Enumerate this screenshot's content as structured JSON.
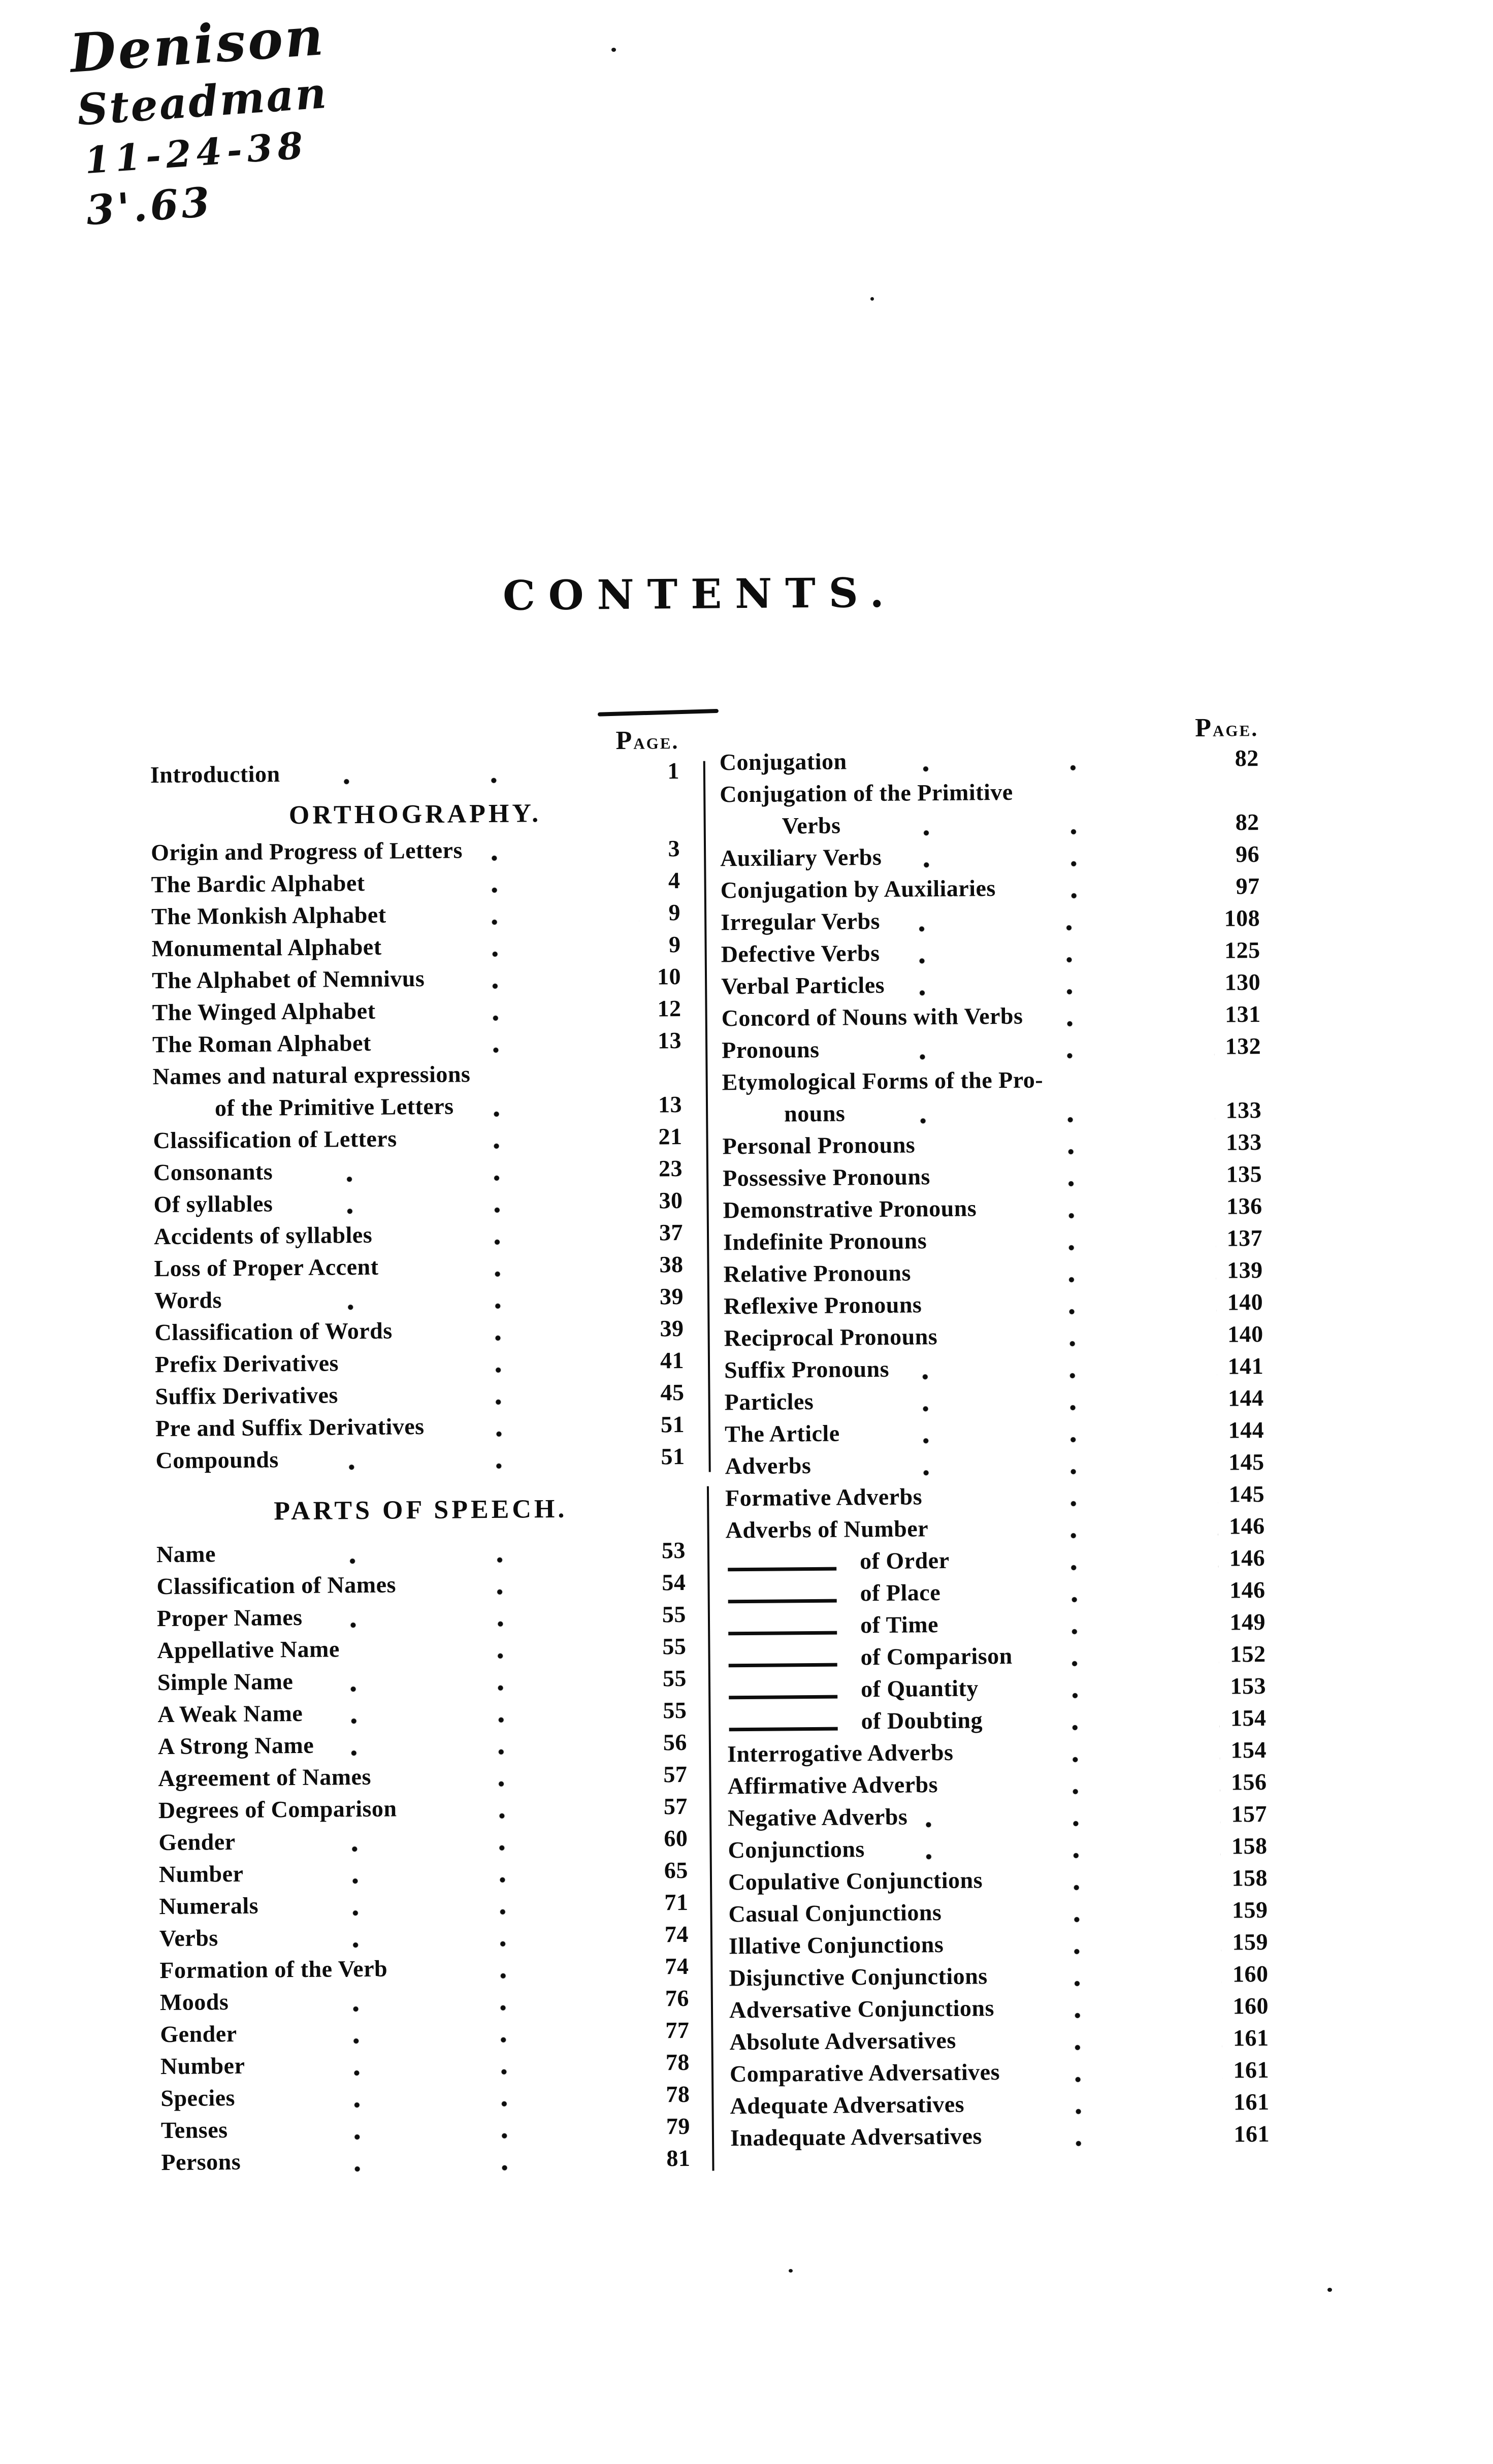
{
  "handwriting": {
    "line1": "Denison",
    "line2": "Steadman",
    "line3": "11-24-38",
    "line4": "3'.63"
  },
  "title": "CONTENTS.",
  "page_header": "Page.",
  "left_column": {
    "items": [
      {
        "type": "pagehead"
      },
      {
        "label": "Introduction",
        "page": "1"
      },
      {
        "section": "ORTHOGRAPHY."
      },
      {
        "label": "Origin and Progress of Letters",
        "page": "3"
      },
      {
        "label": "The Bardic Alphabet",
        "page": "4"
      },
      {
        "label": "The Monkish Alphabet",
        "page": "9"
      },
      {
        "label": "Monumental Alphabet",
        "page": "9"
      },
      {
        "label": "The Alphabet of Nemnivus",
        "page": "10"
      },
      {
        "label": "The Winged Alphabet",
        "page": "12"
      },
      {
        "label": "The Roman Alphabet",
        "page": "13"
      },
      {
        "label": "Names and natural expressions"
      },
      {
        "label": "of the Primitive Letters",
        "page": "13",
        "indent": true
      },
      {
        "label": "Classification of Letters",
        "page": "21"
      },
      {
        "label": "Consonants",
        "page": "23"
      },
      {
        "label": "Of syllables",
        "page": "30"
      },
      {
        "label": "Accidents of syllables",
        "page": "37"
      },
      {
        "label": "Loss of Proper Accent",
        "page": "38"
      },
      {
        "label": "Words",
        "page": "39"
      },
      {
        "label": "Classification of Words",
        "page": "39"
      },
      {
        "label": "Prefix Derivatives",
        "page": "41"
      },
      {
        "label": "Suffix Derivatives",
        "page": "45"
      },
      {
        "label": "Pre and Suffix Derivatives",
        "page": "51"
      },
      {
        "label": "Compounds",
        "page": "51"
      },
      {
        "section": "PARTS OF SPEECH.",
        "gap": "large"
      },
      {
        "label": "Name",
        "page": "53"
      },
      {
        "label": "Classification of Names",
        "page": "54"
      },
      {
        "label": "Proper Names",
        "page": "55"
      },
      {
        "label": "Appellative Name",
        "page": "55"
      },
      {
        "label": "Simple Name",
        "page": "55"
      },
      {
        "label": "A Weak Name",
        "page": "55"
      },
      {
        "label": "A Strong Name",
        "page": "56"
      },
      {
        "label": "Agreement of Names",
        "page": "57"
      },
      {
        "label": "Degrees of Comparison",
        "page": "57"
      },
      {
        "label": "Gender",
        "page": "60"
      },
      {
        "label": "Number",
        "page": "65"
      },
      {
        "label": "Numerals",
        "page": "71"
      },
      {
        "label": "Verbs",
        "page": "74"
      },
      {
        "label": "Formation of the Verb",
        "page": "74"
      },
      {
        "label": "Moods",
        "page": "76"
      },
      {
        "label": "Gender",
        "page": "77"
      },
      {
        "label": "Number",
        "page": "78"
      },
      {
        "label": "Species",
        "page": "78"
      },
      {
        "label": "Tenses",
        "page": "79"
      },
      {
        "label": "Persons",
        "page": "81"
      }
    ]
  },
  "right_column": {
    "items": [
      {
        "type": "pagehead"
      },
      {
        "label": "Conjugation",
        "page": "82"
      },
      {
        "label": "Conjugation of the Primitive"
      },
      {
        "label": "Verbs",
        "page": "82",
        "indent": true
      },
      {
        "label": "Auxiliary Verbs",
        "page": "96"
      },
      {
        "label": "Conjugation by Auxiliaries",
        "page": "97"
      },
      {
        "label": "Irregular Verbs",
        "page": "108"
      },
      {
        "label": "Defective Verbs",
        "page": "125"
      },
      {
        "label": "Verbal Particles",
        "page": "130"
      },
      {
        "label": "Concord of Nouns with Verbs",
        "page": "131"
      },
      {
        "label": "Pronouns",
        "page": "132"
      },
      {
        "label": "Etymological Forms of the Pro-"
      },
      {
        "label": "nouns",
        "page": "133",
        "indent": true
      },
      {
        "label": "Personal Pronouns",
        "page": "133"
      },
      {
        "label": "Possessive Pronouns",
        "page": "135"
      },
      {
        "label": "Demonstrative Pronouns",
        "page": "136"
      },
      {
        "label": "Indefinite Pronouns",
        "page": "137"
      },
      {
        "label": "Relative Pronouns",
        "page": "139"
      },
      {
        "label": "Reflexive Pronouns",
        "page": "140"
      },
      {
        "label": "Reciprocal Pronouns",
        "page": "140"
      },
      {
        "label": "Suffix Pronouns",
        "page": "141"
      },
      {
        "label": "Particles",
        "page": "144"
      },
      {
        "label": "The Article",
        "page": "144"
      },
      {
        "label": "Adverbs",
        "page": "145"
      },
      {
        "label": "Formative Adverbs",
        "page": "145"
      },
      {
        "label": "Adverbs of Number",
        "page": "146"
      },
      {
        "label": "of Order",
        "page": "146",
        "dash": true
      },
      {
        "label": "of Place",
        "page": "146",
        "dash": true
      },
      {
        "label": "of Time",
        "page": "149",
        "dash": true
      },
      {
        "label": "of Comparison",
        "page": "152",
        "dash": true
      },
      {
        "label": "of Quantity",
        "page": "153",
        "dash": true
      },
      {
        "label": "of Doubting",
        "page": "154",
        "dash": true
      },
      {
        "label": "Interrogative Adverbs",
        "page": "154"
      },
      {
        "label": "Affirmative Adverbs",
        "page": "156"
      },
      {
        "label": "Negative Adverbs",
        "page": "157"
      },
      {
        "label": "Conjunctions",
        "page": "158"
      },
      {
        "label": "Copulative Conjunctions",
        "page": "158"
      },
      {
        "label": "Casual Conjunctions",
        "page": "159"
      },
      {
        "label": "Illative Conjunctions",
        "page": "159"
      },
      {
        "label": "Disjunctive Conjunctions",
        "page": "160"
      },
      {
        "label": "Adversative Conjunctions",
        "page": "160"
      },
      {
        "label": "Absolute Adversatives",
        "page": "161"
      },
      {
        "label": "Comparative Adversatives",
        "page": "161"
      },
      {
        "label": "Adequate Adversatives",
        "page": "161"
      },
      {
        "label": "Inadequate Adversatives",
        "page": "161"
      }
    ]
  }
}
